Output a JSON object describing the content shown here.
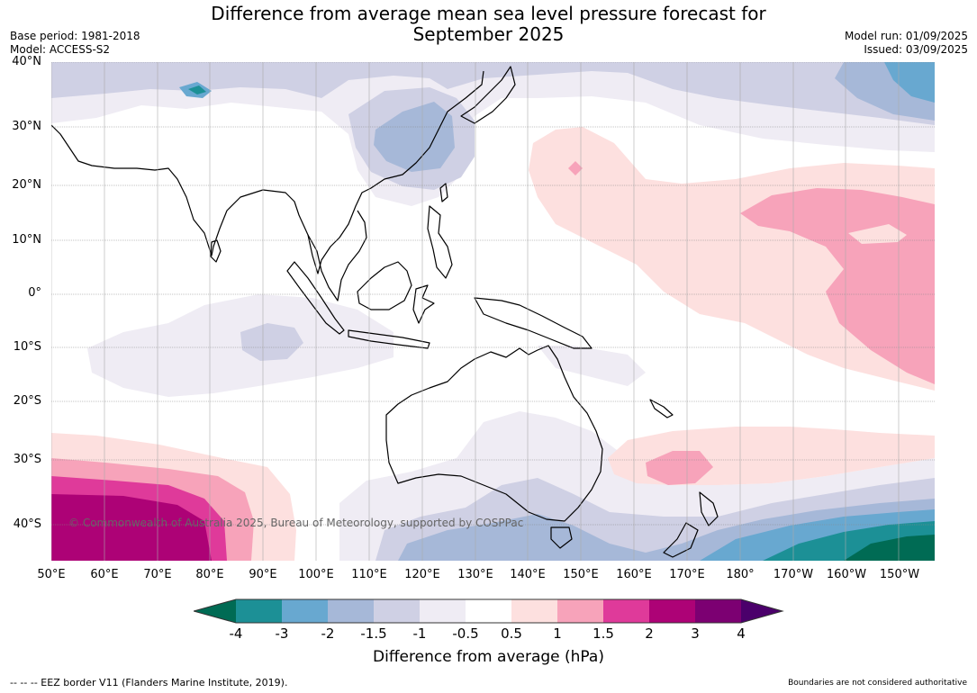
{
  "title_line1": "Difference from average mean sea level pressure forecast for",
  "title_line2": "September 2025",
  "base_period": "Base period: 1981-2018",
  "model": "Model: ACCESS-S2",
  "model_run": "Model run: 01/09/2025",
  "issued": "Issued: 03/09/2025",
  "copyright": "© Commonwealth of Australia 2025, Bureau of Meteorology, supported by COSPPac",
  "footer_left": "--  --  -- EEZ border V11 (Flanders Marine Institute, 2019).",
  "footer_right": "Boundaries are not considered authoritative",
  "lat_labels": [
    "40°N",
    "30°N",
    "20°N",
    "10°N",
    "0°",
    "10°S",
    "20°S",
    "30°S",
    "40°S"
  ],
  "lon_labels": [
    "50°E",
    "60°E",
    "70°E",
    "80°E",
    "90°E",
    "100°E",
    "110°E",
    "120°E",
    "130°E",
    "140°E",
    "150°E",
    "160°E",
    "170°E",
    "180°",
    "170°W",
    "160°W",
    "150°W"
  ],
  "colorbar": {
    "title": "Difference from average (hPa)",
    "tick_labels": [
      "-4",
      "-3",
      "-2",
      "-1.5",
      "-1",
      "-0.5",
      "0.5",
      "1",
      "1.5",
      "2",
      "3",
      "4"
    ],
    "colors": {
      "below_-4": "#006b54",
      "-4_-3": "#1c9096",
      "-3_-2": "#68a8d0",
      "-2_-1.5": "#a6b8d8",
      "-1.5_-1": "#cfd0e4",
      "-1_-0.5": "#efecf4",
      "-0.5_0.5": "#ffffff",
      "0.5_1": "#fde0df",
      "1_1.5": "#f7a3ba",
      "1.5_2": "#df3a9a",
      "2_3": "#ad0276",
      "3_4": "#7c0072",
      "above_4": "#4b006b"
    }
  }
}
